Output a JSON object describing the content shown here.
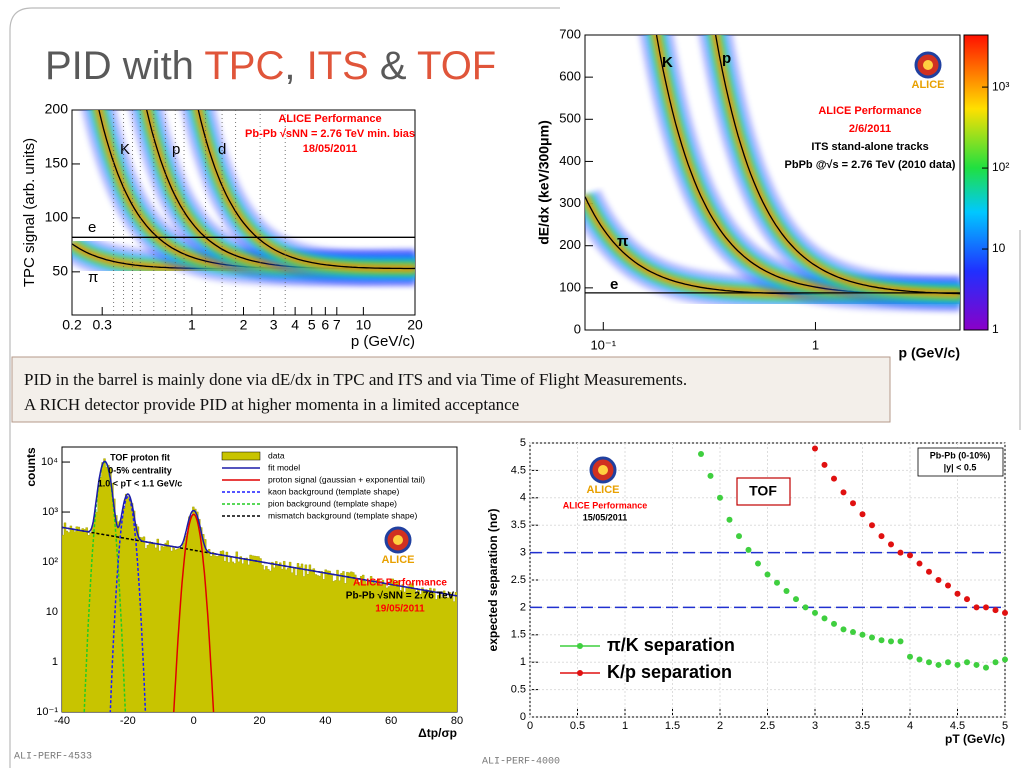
{
  "title": [
    "PID with ",
    "TPC",
    ", ",
    "ITS",
    " & ",
    "TOF"
  ],
  "caption": [
    "PID in the barrel is mainly done via dE/dx in TPC and ITS and via Time of Flight Measurements.",
    "A RICH detector provide PID at higher momenta in a limited acceptance"
  ],
  "footnotes": [
    "ALI-PERF-4533",
    "ALI-PERF-4000"
  ],
  "chart_data": [
    {
      "type": "heatmap",
      "xlabel": "p (GeV/c)",
      "ylabel": "TPC signal (arb. units)",
      "xlog": true,
      "xlim": [
        0.2,
        20
      ],
      "xticks": [
        0.2,
        0.3,
        1,
        2,
        3,
        4,
        5,
        6,
        7,
        10,
        20
      ],
      "ylim": [
        10,
        200
      ],
      "yticks": [
        50,
        100,
        150,
        200
      ],
      "annotations": [
        "ALICE Performance",
        "Pb-Pb √sNN = 2.76 TeV min. bias",
        "18/05/2011"
      ],
      "species": [
        "e",
        "π",
        "K",
        "p",
        "d"
      ]
    },
    {
      "type": "heatmap",
      "xlabel": "p (GeV/c)",
      "ylabel": "dE/dx (keV/300μm)",
      "xlog": true,
      "xlim": [
        0.082,
        4.8
      ],
      "xticks": [
        {
          "value": 0.1,
          "label": "10⁻¹"
        },
        1
      ],
      "ylim": [
        0,
        700
      ],
      "yticks": [
        0,
        100,
        200,
        300,
        400,
        500,
        600,
        700
      ],
      "colorbar": {
        "log": true,
        "lim": [
          1,
          4400
        ],
        "ticks": [
          {
            "value": 1000,
            "label": "10³"
          },
          {
            "value": 100,
            "label": "10²"
          },
          10,
          1
        ]
      },
      "logo": "ALICE",
      "annotations": [
        "ALICE Performance",
        "2/6/2011",
        "ITS stand-alone tracks",
        "PbPb @√s = 2.76 TeV (2010 data)"
      ],
      "species": [
        "K",
        "p",
        "π",
        "e"
      ]
    },
    {
      "type": "area",
      "xlabel": "Δtp/σp",
      "ylabel": "counts",
      "xlim": [
        -40,
        80
      ],
      "xticks": [
        -40,
        -20,
        0,
        20,
        40,
        60,
        80
      ],
      "ylog": true,
      "ylim": [
        0.1,
        20000
      ],
      "yticks": [
        {
          "value": 10000,
          "label": "10⁴"
        },
        {
          "value": 1000,
          "label": "10³"
        },
        {
          "value": 100,
          "label": "10²"
        },
        10,
        1,
        {
          "value": 0.1,
          "label": "10⁻¹"
        }
      ],
      "header": [
        "TOF proton fit",
        "0-5% centrality",
        "1.0 < pT < 1.1 GeV/c"
      ],
      "legend": [
        {
          "name": "data",
          "color": "#c8c400"
        },
        {
          "name": "fit model",
          "color": "#1c1ca8"
        },
        {
          "name": "proton signal (gaussian + exponential tail)",
          "color": "#e00000"
        },
        {
          "name": "kaon background (template shape)",
          "color": "#1c1cff"
        },
        {
          "name": "pion background (template shape)",
          "color": "#22cc22"
        },
        {
          "name": "mismatch background (template shape)",
          "color": "#000000"
        }
      ],
      "logo": "ALICE",
      "annotations": [
        "ALICE Performance",
        "Pb-Pb √sNN = 2.76 TeV",
        "19/05/2011"
      ]
    },
    {
      "type": "scatter",
      "xlabel": "pT (GeV/c)",
      "ylabel": "expected separation (nσ)",
      "xlim": [
        0,
        5
      ],
      "xticks": [
        0,
        0.5,
        1,
        1.5,
        2,
        2.5,
        3,
        3.5,
        4,
        4.5,
        5
      ],
      "ylim": [
        0,
        5
      ],
      "yticks": [
        0,
        0.5,
        1,
        1.5,
        2,
        2.5,
        3,
        3.5,
        4,
        4.5,
        5
      ],
      "reference_lines": [
        2,
        3
      ],
      "reference_color": "#2030d0",
      "badge": "TOF",
      "box": [
        "Pb-Pb (0-10%)",
        "|y| < 0.5"
      ],
      "logo": "ALICE",
      "annotations": [
        "ALICE Performance",
        "15/05/2011"
      ],
      "series": [
        {
          "name": "π/K separation",
          "color": "#3fcf3f",
          "x": [
            1.8,
            1.9,
            2.0,
            2.1,
            2.2,
            2.3,
            2.4,
            2.5,
            2.6,
            2.7,
            2.8,
            2.9,
            3.0,
            3.1,
            3.2,
            3.3,
            3.4,
            3.5,
            3.6,
            3.7,
            3.8,
            3.9,
            4.0,
            4.1,
            4.2,
            4.3,
            4.4,
            4.5,
            4.6,
            4.7,
            4.8,
            4.9,
            5.0
          ],
          "values": [
            4.8,
            4.4,
            4.0,
            3.6,
            3.3,
            3.05,
            2.8,
            2.6,
            2.45,
            2.3,
            2.15,
            2.0,
            1.9,
            1.8,
            1.7,
            1.6,
            1.55,
            1.5,
            1.45,
            1.4,
            1.38,
            1.38,
            1.1,
            1.05,
            1.0,
            0.95,
            1.0,
            0.95,
            1.0,
            0.95,
            0.9,
            1.0,
            1.05
          ]
        },
        {
          "name": "K/p separation",
          "color": "#e01010",
          "x": [
            3.0,
            3.1,
            3.2,
            3.3,
            3.4,
            3.5,
            3.6,
            3.7,
            3.8,
            3.9,
            4.0,
            4.1,
            4.2,
            4.3,
            4.4,
            4.5,
            4.6,
            4.7,
            4.8,
            4.9,
            5.0
          ],
          "values": [
            4.9,
            4.6,
            4.35,
            4.1,
            3.9,
            3.7,
            3.5,
            3.3,
            3.15,
            3.0,
            2.95,
            2.8,
            2.65,
            2.5,
            2.4,
            2.25,
            2.15,
            2.0,
            2.0,
            1.95,
            1.9
          ]
        }
      ]
    }
  ]
}
